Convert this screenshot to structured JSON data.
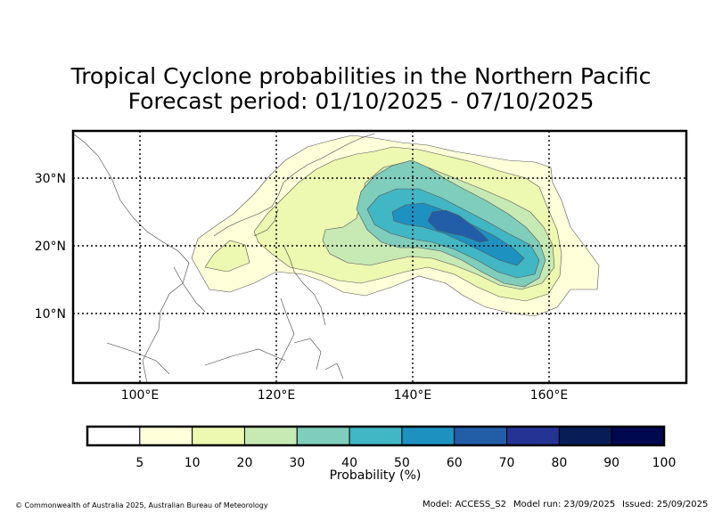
{
  "title": {
    "line1": "Tropical Cyclone probabilities in the Northern Pacific",
    "line2": "Forecast period: 01/10/2025 - 07/10/2025"
  },
  "map": {
    "lat_labels": [
      "30°N",
      "20°N",
      "10°N"
    ],
    "lon_labels": [
      "100°E",
      "120°E",
      "140°E",
      "160°E"
    ],
    "extent": {
      "lon": [
        90,
        180
      ],
      "lat": [
        0,
        37
      ]
    }
  },
  "colorbar": {
    "label": "Probability (%)",
    "ticks": [
      "5",
      "10",
      "20",
      "30",
      "40",
      "50",
      "60",
      "70",
      "80",
      "90",
      "100"
    ],
    "colors": [
      "#ffffff",
      "#ffffd9",
      "#edf8b1",
      "#c7e9b4",
      "#7fcdbb",
      "#41b6c4",
      "#1d91c0",
      "#225ea8",
      "#253494",
      "#081d58",
      "#000850"
    ]
  },
  "footer": {
    "copyright": "© Commonwealth of Australia 2025, Australian Bureau of Meteorology",
    "model": "Model: ACCESS_S2",
    "model_run": "Model run: 23/09/2025",
    "issued": "Issued: 25/09/2025"
  }
}
